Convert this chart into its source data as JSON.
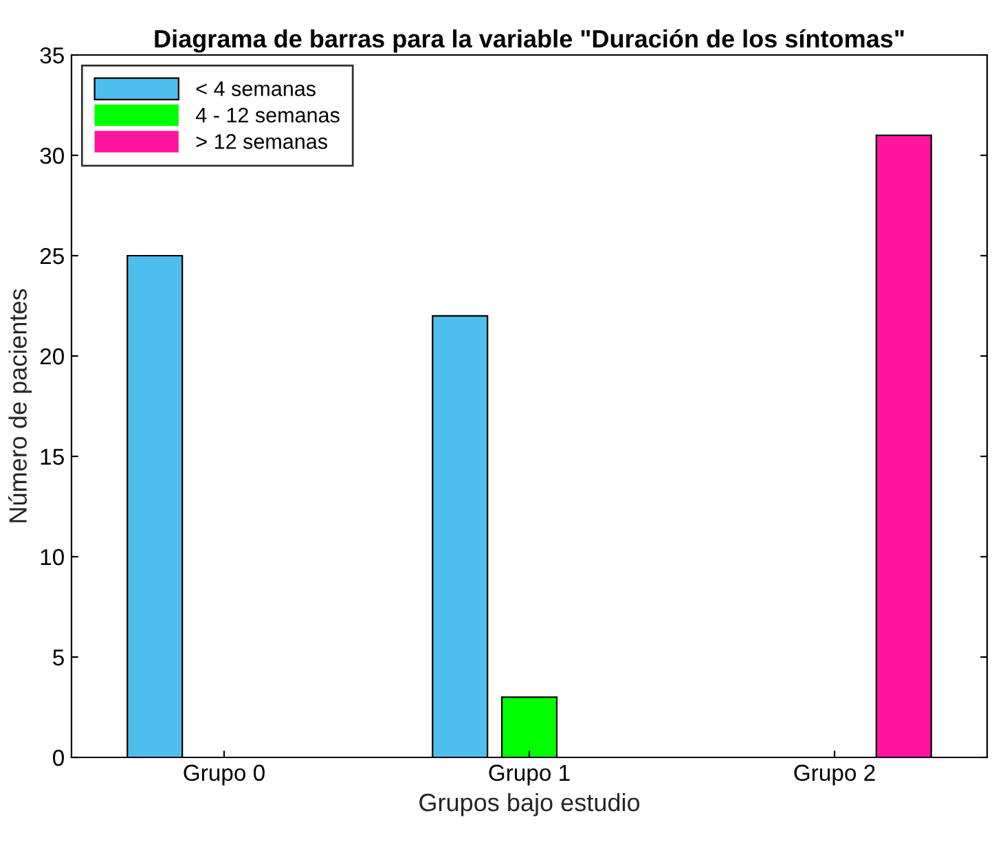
{
  "chart_data": {
    "type": "bar",
    "title": "Diagrama de barras para la variable \"Duración de los síntomas\"",
    "xlabel": "Grupos bajo estudio",
    "ylabel": "Número de pacientes",
    "categories": [
      "Grupo 0",
      "Grupo 1",
      "Grupo 2"
    ],
    "series": [
      {
        "name": "< 4 semanas",
        "color": "#4dbeee",
        "values": [
          25,
          22,
          0
        ]
      },
      {
        "name": "4 - 12 semanas",
        "color": "#00ff00",
        "values": [
          0,
          3,
          0
        ]
      },
      {
        "name": "> 12 semanas",
        "color": "#ff14a0",
        "values": [
          0,
          0,
          31
        ]
      }
    ],
    "ylim": [
      0,
      35
    ],
    "yticks": [
      0,
      5,
      10,
      15,
      20,
      25,
      30,
      35
    ],
    "grid": false,
    "legend": "top left"
  }
}
